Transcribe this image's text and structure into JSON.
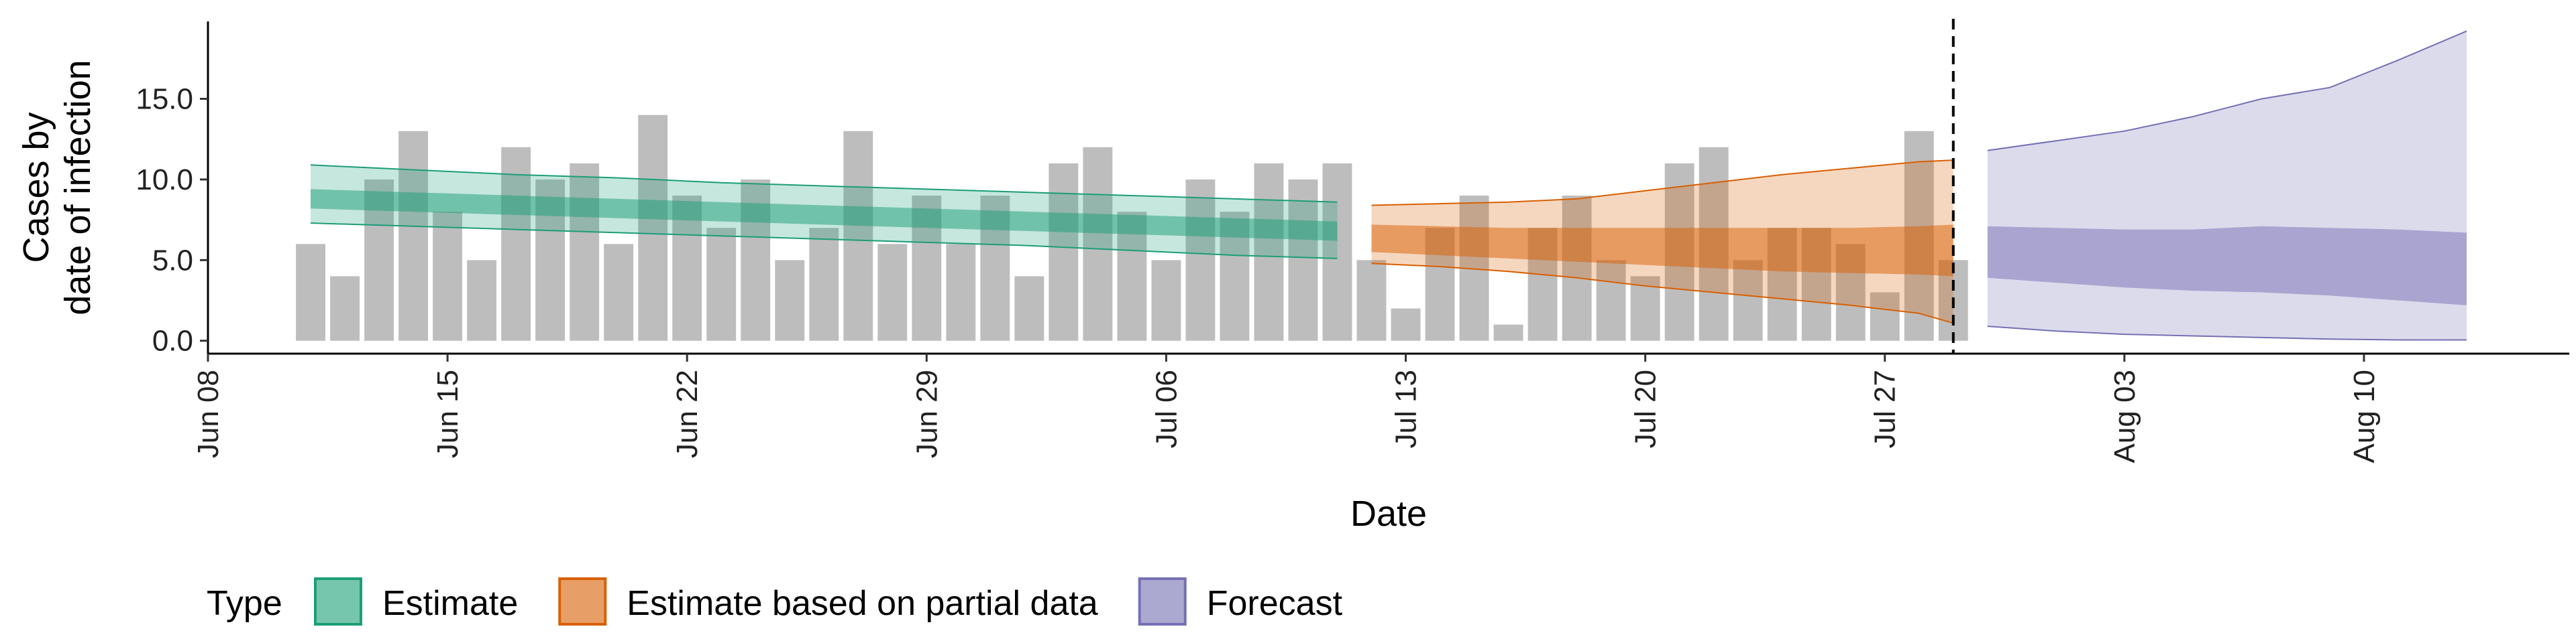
{
  "chart_data": {
    "type": "bar",
    "ylabel": [
      "Cases by",
      "date of infection"
    ],
    "xlabel": "Date",
    "ylim": [
      -0.8,
      19.8
    ],
    "y_ticks": [
      0,
      5,
      10,
      15
    ],
    "y_tick_labels": [
      "0.0",
      "5.0",
      "10.0",
      "15.0"
    ],
    "x_ticks": [
      "2020-06-08",
      "2020-06-15",
      "2020-06-22",
      "2020-06-29",
      "2020-07-06",
      "2020-07-13",
      "2020-07-20",
      "2020-07-27",
      "2020-08-03",
      "2020-08-10"
    ],
    "x_tick_labels": [
      "Jun 08",
      "Jun 15",
      "Jun 22",
      "Jun 29",
      "Jul 06",
      "Jul 13",
      "Jul 20",
      "Jul 27",
      "Aug 03",
      "Aug 10"
    ],
    "xlim": [
      "2020-06-08",
      "2020-08-16"
    ],
    "cutoff_date": "2020-07-29",
    "bars": {
      "start_date": "2020-06-11",
      "values": [
        6,
        4,
        10,
        13,
        8,
        5,
        12,
        10,
        11,
        6,
        14,
        9,
        7,
        10,
        5,
        7,
        13,
        6,
        9,
        6,
        9,
        4,
        11,
        12,
        8,
        5,
        10,
        8,
        11,
        10,
        11,
        5,
        2,
        7,
        9,
        1,
        7,
        9,
        5,
        4,
        11,
        12,
        5,
        7,
        7,
        6,
        3,
        13,
        5
      ],
      "color": "#bdbdbd"
    },
    "series": [
      {
        "name": "Estimate",
        "fill": "#1b9e77",
        "dates": [
          "2020-06-11",
          "2020-06-14",
          "2020-06-17",
          "2020-06-20",
          "2020-06-23",
          "2020-06-26",
          "2020-06-29",
          "2020-07-02",
          "2020-07-05",
          "2020-07-08",
          "2020-07-11"
        ],
        "outer_lower": [
          7.3,
          7.1,
          6.9,
          6.7,
          6.5,
          6.3,
          6.1,
          5.9,
          5.6,
          5.3,
          5.1
        ],
        "outer_upper": [
          10.9,
          10.6,
          10.3,
          10.1,
          9.8,
          9.6,
          9.4,
          9.2,
          9.0,
          8.8,
          8.6
        ],
        "inner_lower": [
          8.2,
          8.0,
          7.8,
          7.6,
          7.4,
          7.2,
          7.0,
          6.8,
          6.6,
          6.4,
          6.2
        ],
        "inner_upper": [
          9.4,
          9.2,
          9.0,
          8.8,
          8.6,
          8.4,
          8.2,
          8.0,
          7.8,
          7.6,
          7.4
        ]
      },
      {
        "name": "Estimate based on partial data",
        "fill": "#d95f02",
        "dates": [
          "2020-07-12",
          "2020-07-14",
          "2020-07-16",
          "2020-07-18",
          "2020-07-20",
          "2020-07-22",
          "2020-07-24",
          "2020-07-26",
          "2020-07-28",
          "2020-07-29"
        ],
        "outer_lower": [
          4.8,
          4.6,
          4.3,
          3.9,
          3.4,
          3.0,
          2.6,
          2.2,
          1.7,
          1.1
        ],
        "outer_upper": [
          8.4,
          8.5,
          8.6,
          8.8,
          9.3,
          9.8,
          10.3,
          10.7,
          11.1,
          11.2
        ],
        "inner_lower": [
          5.5,
          5.3,
          5.1,
          4.9,
          4.7,
          4.5,
          4.3,
          4.2,
          4.1,
          4.0
        ],
        "inner_upper": [
          7.2,
          7.1,
          7.0,
          7.0,
          7.0,
          7.0,
          7.0,
          7.0,
          7.1,
          7.2
        ]
      },
      {
        "name": "Forecast",
        "fill": "#7570b3",
        "dates": [
          "2020-07-30",
          "2020-08-01",
          "2020-08-03",
          "2020-08-05",
          "2020-08-07",
          "2020-08-09",
          "2020-08-11",
          "2020-08-13"
        ],
        "outer_lower": [
          0.9,
          0.6,
          0.4,
          0.3,
          0.2,
          0.1,
          0.05,
          0.05
        ],
        "outer_upper": [
          11.8,
          12.4,
          13.0,
          13.9,
          15.0,
          15.7,
          17.4,
          19.2
        ],
        "inner_lower": [
          3.9,
          3.6,
          3.3,
          3.1,
          3.0,
          2.8,
          2.5,
          2.2
        ],
        "inner_upper": [
          7.1,
          7.0,
          6.9,
          6.9,
          7.1,
          7.0,
          6.9,
          6.7
        ]
      }
    ],
    "legend": {
      "title": "Type",
      "position": "bottom",
      "items": [
        "Estimate",
        "Estimate based on partial data",
        "Forecast"
      ]
    }
  }
}
